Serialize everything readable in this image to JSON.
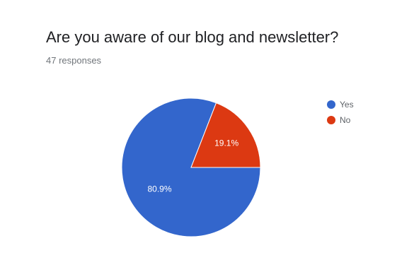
{
  "question": {
    "title": "Are you aware of our blog and newsletter?",
    "responses": "47 responses"
  },
  "colors": {
    "yes": "#3366cc",
    "no": "#dc3912"
  },
  "chart_data": {
    "type": "pie",
    "title": "Are you aware of our blog and newsletter?",
    "subtitle": "47 responses",
    "categories": [
      "Yes",
      "No"
    ],
    "values": [
      80.9,
      19.1
    ],
    "labels": [
      "80.9%",
      "19.1%"
    ],
    "colors": [
      "#3366cc",
      "#dc3912"
    ],
    "legend": "right"
  }
}
